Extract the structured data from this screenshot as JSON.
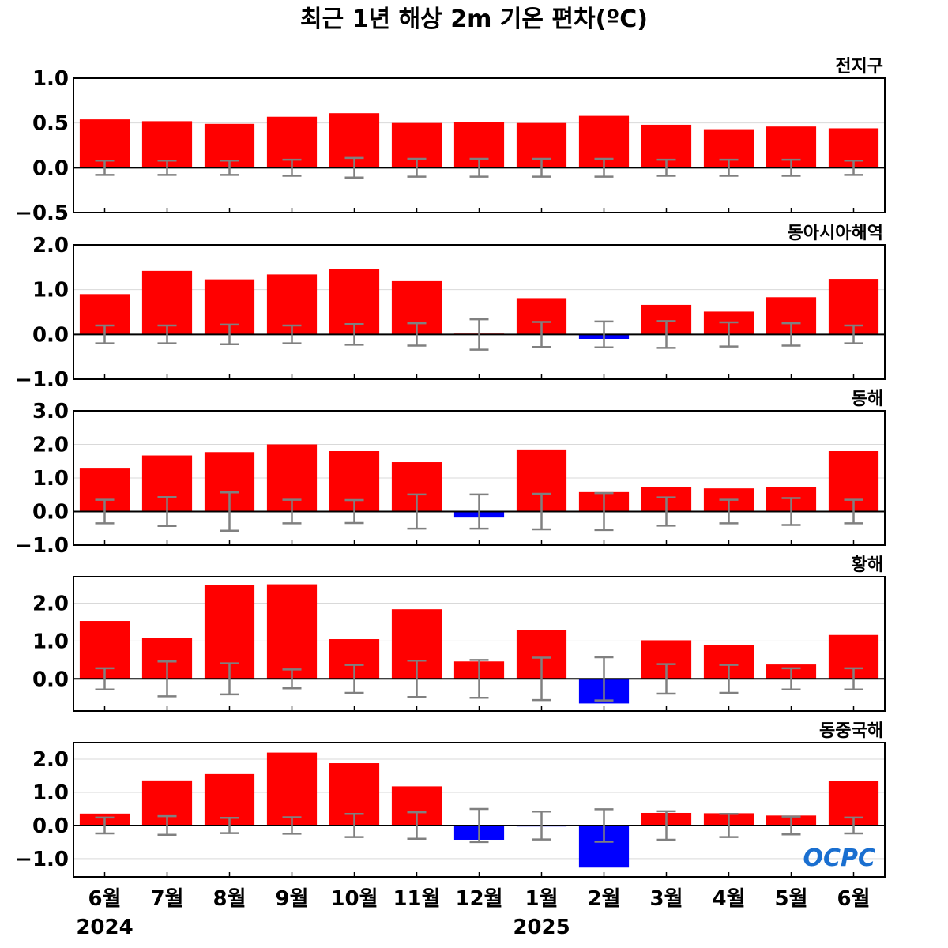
{
  "title": "최근 1년 해상 2m 기온 편차(ºC)",
  "logo_text": "OCPC",
  "colors": {
    "positive": "#ff0000",
    "negative": "#0000ff",
    "errorbar": "#808080",
    "grid": "#d9d9d9",
    "axis": "#000000"
  },
  "chart_data": {
    "type": "bar",
    "categories": [
      "6월",
      "7월",
      "8월",
      "9월",
      "10월",
      "11월",
      "12월",
      "1월",
      "2월",
      "3월",
      "4월",
      "5월",
      "6월"
    ],
    "year_labels": [
      "2024",
      "2025"
    ],
    "panels": [
      {
        "name": "전지구",
        "ylim": [
          -0.5,
          1.0
        ],
        "yticks": [
          "1.0",
          "0.5",
          "0.0",
          "−0.5"
        ],
        "ytick_values": [
          1.0,
          0.5,
          0.0,
          -0.5
        ],
        "values": [
          0.54,
          0.52,
          0.49,
          0.57,
          0.61,
          0.5,
          0.51,
          0.5,
          0.58,
          0.48,
          0.43,
          0.46,
          0.44
        ],
        "error": [
          0.08,
          0.08,
          0.08,
          0.09,
          0.11,
          0.1,
          0.1,
          0.1,
          0.1,
          0.09,
          0.09,
          0.09,
          0.08
        ]
      },
      {
        "name": "동아시아해역",
        "ylim": [
          -1.0,
          2.0
        ],
        "yticks": [
          "2.0",
          "1.0",
          "0.0",
          "−1.0"
        ],
        "ytick_values": [
          2.0,
          1.0,
          0.0,
          -1.0
        ],
        "values": [
          0.9,
          1.42,
          1.23,
          1.34,
          1.47,
          1.19,
          0.02,
          0.81,
          -0.1,
          0.66,
          0.51,
          0.83,
          1.24
        ],
        "error": [
          0.2,
          0.2,
          0.22,
          0.2,
          0.23,
          0.25,
          0.34,
          0.28,
          0.29,
          0.3,
          0.27,
          0.25,
          0.2
        ]
      },
      {
        "name": "동해",
        "ylim": [
          -1.0,
          3.0
        ],
        "yticks": [
          "3.0",
          "2.0",
          "1.0",
          "0.0",
          "−1.0"
        ],
        "ytick_values": [
          3.0,
          2.0,
          1.0,
          0.0,
          -1.0
        ],
        "values": [
          1.28,
          1.67,
          1.77,
          2.0,
          1.8,
          1.47,
          -0.18,
          1.85,
          0.58,
          0.74,
          0.69,
          0.72,
          1.8
        ],
        "error": [
          0.35,
          0.43,
          0.57,
          0.35,
          0.34,
          0.51,
          0.51,
          0.53,
          0.55,
          0.42,
          0.35,
          0.4,
          0.35
        ]
      },
      {
        "name": "황해",
        "ylim": [
          -0.85,
          2.7
        ],
        "yticks": [
          "2.0",
          "1.0",
          "0.0"
        ],
        "ytick_values": [
          2.0,
          1.0,
          0.0
        ],
        "values": [
          1.53,
          1.08,
          2.48,
          2.5,
          1.05,
          1.84,
          0.46,
          1.3,
          -0.65,
          1.02,
          0.9,
          0.38,
          1.16
        ],
        "error": [
          0.28,
          0.46,
          0.41,
          0.25,
          0.37,
          0.48,
          0.5,
          0.56,
          0.57,
          0.39,
          0.37,
          0.28,
          0.28
        ]
      },
      {
        "name": "동중국해",
        "ylim": [
          -1.55,
          2.5
        ],
        "yticks": [
          "2.0",
          "1.0",
          "0.0",
          "−1.0"
        ],
        "ytick_values": [
          2.0,
          1.0,
          0.0,
          -1.0
        ],
        "values": [
          0.36,
          1.36,
          1.55,
          2.2,
          1.88,
          1.18,
          -0.43,
          -0.03,
          -1.27,
          0.38,
          0.37,
          0.3,
          1.35
        ],
        "error": [
          0.24,
          0.28,
          0.23,
          0.25,
          0.35,
          0.4,
          0.5,
          0.42,
          0.49,
          0.43,
          0.35,
          0.27,
          0.24
        ]
      }
    ]
  }
}
